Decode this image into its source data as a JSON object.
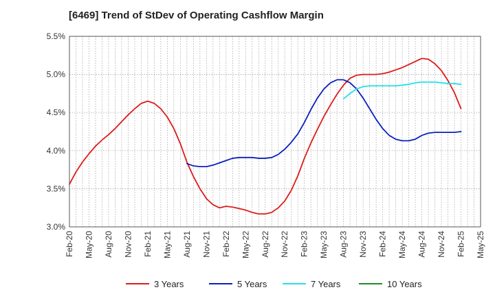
{
  "chart_data": {
    "type": "line",
    "title": "[6469]  Trend of StDev of Operating Cashflow Margin",
    "xlabel": "",
    "ylabel": "",
    "x_ticks": [
      "Feb-20",
      "May-20",
      "Aug-20",
      "Nov-20",
      "Feb-21",
      "May-21",
      "Aug-21",
      "Nov-21",
      "Feb-22",
      "May-22",
      "Aug-22",
      "Nov-22",
      "Feb-23",
      "May-23",
      "Aug-23",
      "Nov-23",
      "Feb-24",
      "May-24",
      "Aug-24",
      "Nov-24",
      "Feb-25",
      "May-25"
    ],
    "y_ticks": [
      "3.0%",
      "3.5%",
      "4.0%",
      "4.5%",
      "5.0%",
      "5.5%"
    ],
    "ylim": [
      3.0,
      5.5
    ],
    "y_unit": "%",
    "grid": true,
    "legend_position": "bottom",
    "series": [
      {
        "name": "3 Years",
        "color": "#dd1a1a",
        "points": [
          [
            "Feb-20",
            3.56
          ],
          [
            "Mar-20",
            3.72
          ],
          [
            "Apr-20",
            3.85
          ],
          [
            "May-20",
            3.96
          ],
          [
            "Jun-20",
            4.06
          ],
          [
            "Jul-20",
            4.14
          ],
          [
            "Aug-20",
            4.21
          ],
          [
            "Sep-20",
            4.29
          ],
          [
            "Oct-20",
            4.38
          ],
          [
            "Nov-20",
            4.47
          ],
          [
            "Dec-20",
            4.55
          ],
          [
            "Jan-21",
            4.62
          ],
          [
            "Feb-21",
            4.65
          ],
          [
            "Mar-21",
            4.62
          ],
          [
            "Apr-21",
            4.55
          ],
          [
            "May-21",
            4.44
          ],
          [
            "Jun-21",
            4.29
          ],
          [
            "Jul-21",
            4.09
          ],
          [
            "Aug-21",
            3.85
          ],
          [
            "Sep-21",
            3.66
          ],
          [
            "Oct-21",
            3.5
          ],
          [
            "Nov-21",
            3.37
          ],
          [
            "Dec-21",
            3.29
          ],
          [
            "Jan-22",
            3.25
          ],
          [
            "Feb-22",
            3.27
          ],
          [
            "Mar-22",
            3.26
          ],
          [
            "Apr-22",
            3.24
          ],
          [
            "May-22",
            3.22
          ],
          [
            "Jun-22",
            3.19
          ],
          [
            "Jul-22",
            3.17
          ],
          [
            "Aug-22",
            3.17
          ],
          [
            "Sep-22",
            3.19
          ],
          [
            "Oct-22",
            3.25
          ],
          [
            "Nov-22",
            3.34
          ],
          [
            "Dec-22",
            3.48
          ],
          [
            "Jan-23",
            3.67
          ],
          [
            "Feb-23",
            3.9
          ],
          [
            "Mar-23",
            4.1
          ],
          [
            "Apr-23",
            4.28
          ],
          [
            "May-23",
            4.45
          ],
          [
            "Jun-23",
            4.6
          ],
          [
            "Jul-23",
            4.74
          ],
          [
            "Aug-23",
            4.86
          ],
          [
            "Sep-23",
            4.95
          ],
          [
            "Oct-23",
            4.99
          ],
          [
            "Nov-23",
            5.0
          ],
          [
            "Dec-23",
            5.0
          ],
          [
            "Jan-24",
            5.0
          ],
          [
            "Feb-24",
            5.01
          ],
          [
            "Mar-24",
            5.03
          ],
          [
            "Apr-24",
            5.06
          ],
          [
            "May-24",
            5.09
          ],
          [
            "Jun-24",
            5.13
          ],
          [
            "Jul-24",
            5.17
          ],
          [
            "Aug-24",
            5.21
          ],
          [
            "Sep-24",
            5.2
          ],
          [
            "Oct-24",
            5.14
          ],
          [
            "Nov-24",
            5.05
          ],
          [
            "Dec-24",
            4.92
          ],
          [
            "Jan-25",
            4.76
          ],
          [
            "Feb-25",
            4.55
          ]
        ]
      },
      {
        "name": "5 Years",
        "color": "#0a1fbe",
        "points": [
          [
            "Aug-21",
            3.83
          ],
          [
            "Sep-21",
            3.8
          ],
          [
            "Oct-21",
            3.79
          ],
          [
            "Nov-21",
            3.79
          ],
          [
            "Dec-21",
            3.81
          ],
          [
            "Jan-22",
            3.84
          ],
          [
            "Feb-22",
            3.87
          ],
          [
            "Mar-22",
            3.9
          ],
          [
            "Apr-22",
            3.91
          ],
          [
            "May-22",
            3.91
          ],
          [
            "Jun-22",
            3.91
          ],
          [
            "Jul-22",
            3.9
          ],
          [
            "Aug-22",
            3.9
          ],
          [
            "Sep-22",
            3.91
          ],
          [
            "Oct-22",
            3.95
          ],
          [
            "Nov-22",
            4.02
          ],
          [
            "Dec-22",
            4.11
          ],
          [
            "Jan-23",
            4.22
          ],
          [
            "Feb-23",
            4.37
          ],
          [
            "Mar-23",
            4.54
          ],
          [
            "Apr-23",
            4.69
          ],
          [
            "May-23",
            4.81
          ],
          [
            "Jun-23",
            4.89
          ],
          [
            "Jul-23",
            4.93
          ],
          [
            "Aug-23",
            4.93
          ],
          [
            "Sep-23",
            4.89
          ],
          [
            "Oct-23",
            4.81
          ],
          [
            "Nov-23",
            4.69
          ],
          [
            "Dec-23",
            4.55
          ],
          [
            "Jan-24",
            4.41
          ],
          [
            "Feb-24",
            4.29
          ],
          [
            "Mar-24",
            4.2
          ],
          [
            "Apr-24",
            4.15
          ],
          [
            "May-24",
            4.13
          ],
          [
            "Jun-24",
            4.13
          ],
          [
            "Jul-24",
            4.15
          ],
          [
            "Aug-24",
            4.2
          ],
          [
            "Sep-24",
            4.23
          ],
          [
            "Oct-24",
            4.24
          ],
          [
            "Nov-24",
            4.24
          ],
          [
            "Dec-24",
            4.24
          ],
          [
            "Jan-25",
            4.24
          ],
          [
            "Feb-25",
            4.25
          ]
        ]
      },
      {
        "name": "7 Years",
        "color": "#22e1ea",
        "points": [
          [
            "Aug-23",
            4.68
          ],
          [
            "Sep-23",
            4.75
          ],
          [
            "Oct-23",
            4.81
          ],
          [
            "Nov-23",
            4.84
          ],
          [
            "Dec-23",
            4.85
          ],
          [
            "Jan-24",
            4.85
          ],
          [
            "Feb-24",
            4.85
          ],
          [
            "Mar-24",
            4.85
          ],
          [
            "Apr-24",
            4.85
          ],
          [
            "May-24",
            4.86
          ],
          [
            "Jun-24",
            4.87
          ],
          [
            "Jul-24",
            4.89
          ],
          [
            "Aug-24",
            4.9
          ],
          [
            "Sep-24",
            4.9
          ],
          [
            "Oct-24",
            4.9
          ],
          [
            "Nov-24",
            4.89
          ],
          [
            "Dec-24",
            4.88
          ],
          [
            "Jan-25",
            4.88
          ],
          [
            "Feb-25",
            4.87
          ]
        ]
      },
      {
        "name": "10 Years",
        "color": "#1e8c1e",
        "points": []
      }
    ]
  }
}
